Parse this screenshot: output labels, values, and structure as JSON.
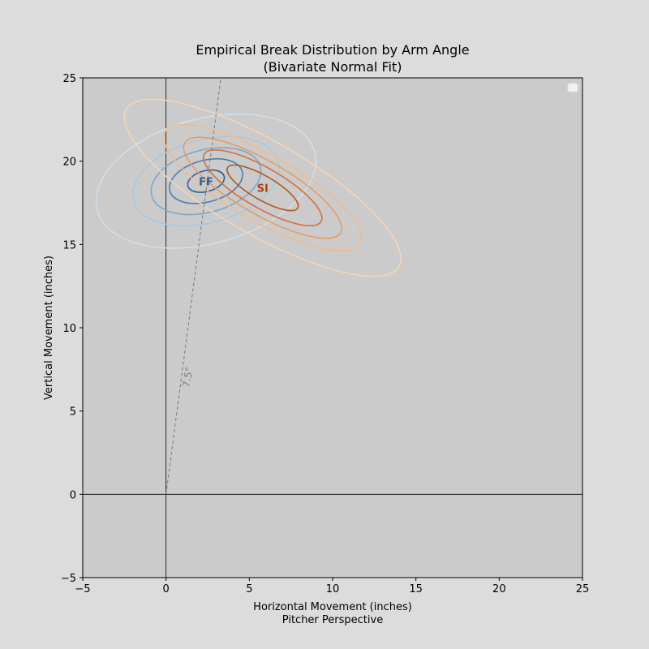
{
  "chart_data": {
    "type": "contour",
    "title": "Empirical Break Distribution by Arm Angle",
    "subtitle": "(Bivariate Normal Fit)",
    "xlabel": "Horizontal Movement (inches)",
    "xlabel_sub": "Pitcher Perspective",
    "ylabel": "Vertical Movement (inches)",
    "xlim": [
      -5,
      25
    ],
    "ylim": [
      -5,
      25
    ],
    "xticks": [
      -5,
      0,
      5,
      10,
      15,
      20,
      25
    ],
    "yticks": [
      -5,
      0,
      5,
      10,
      15,
      20,
      25
    ],
    "xtick_labels": [
      "−5",
      "0",
      "5",
      "10",
      "15",
      "20",
      "25"
    ],
    "ytick_labels": [
      "−5",
      "0",
      "5",
      "10",
      "15",
      "20",
      "25"
    ],
    "grid": false,
    "legend": "top-right (empty)",
    "arm_angle": {
      "label": "7.5°",
      "degrees_from_vertical": 7.5
    },
    "series": [
      {
        "name": "FF",
        "center": [
          2.4,
          18.8
        ],
        "semi_axes_per_sigma": [
          2.25,
          1.25
        ],
        "major_axis_angle_deg": 15,
        "sigma_levels": [
          0.5,
          1,
          1.5,
          2,
          3
        ],
        "colors": [
          "#2f5f93",
          "#4a7fb0",
          "#7aa8cd",
          "#a9c8e0",
          "#cfdfec"
        ],
        "label_color": "#2a5fa0"
      },
      {
        "name": "SI",
        "center": [
          5.8,
          18.4
        ],
        "semi_axes_per_sigma": [
          2.7,
          0.8
        ],
        "major_axis_angle_deg": -30,
        "sigma_levels": [
          0.9,
          1.5,
          2,
          2.5,
          3.5
        ],
        "colors": [
          "#b5581e",
          "#d86e34",
          "#eb9a5e",
          "#f2bb8c",
          "#f4d5b8"
        ],
        "label_color": "#b43d10"
      }
    ]
  }
}
